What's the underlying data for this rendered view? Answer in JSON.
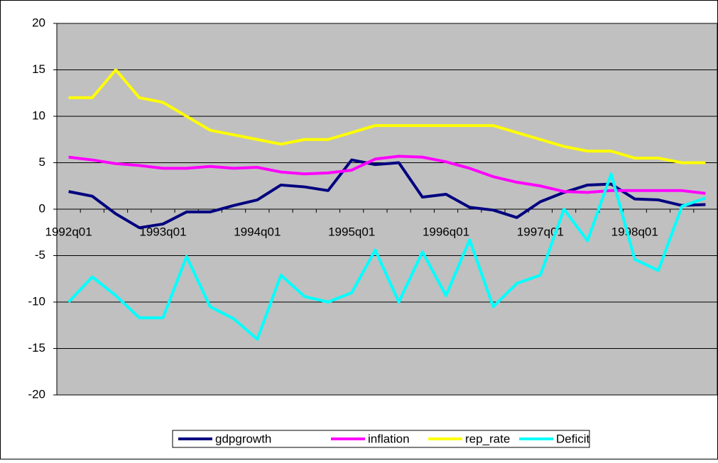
{
  "chart_data": {
    "type": "line",
    "categories": [
      "1992q01",
      null,
      null,
      null,
      "1993q01",
      null,
      null,
      null,
      "1994q01",
      null,
      null,
      null,
      "1995q01",
      null,
      null,
      null,
      "1996q01",
      null,
      null,
      null,
      "1997q01",
      null,
      null,
      null,
      "1998q01",
      null,
      null,
      null
    ],
    "series": [
      {
        "name": "gdpgrowth",
        "color": "#000080",
        "values": [
          1.9,
          1.4,
          -0.5,
          -2,
          -1.6,
          -0.3,
          -0.3,
          0.4,
          1.0,
          2.6,
          2.4,
          2.0,
          5.3,
          4.8,
          5.0,
          1.3,
          1.6,
          0.2,
          -0.1,
          -0.9,
          0.8,
          1.8,
          2.6,
          2.7,
          1.1,
          1.0,
          0.4,
          0.5
        ]
      },
      {
        "name": "inflation",
        "color": "#ff00ff",
        "values": [
          5.6,
          5.3,
          4.9,
          4.7,
          4.4,
          4.4,
          4.6,
          4.4,
          4.5,
          4.0,
          3.8,
          3.9,
          4.2,
          5.4,
          5.7,
          5.6,
          5.1,
          4.4,
          3.5,
          2.9,
          2.5,
          1.9,
          1.8,
          2.0,
          2.0,
          2.0,
          2.0,
          1.7
        ]
      },
      {
        "name": "rep_rate",
        "color": "#ffff00",
        "values": [
          12,
          12,
          15,
          12,
          11.5,
          10,
          8.5,
          8,
          7.5,
          7,
          7.5,
          7.5,
          8.25,
          9,
          9,
          9,
          9,
          9,
          9,
          8.25,
          7.5,
          6.75,
          6.25,
          6.25,
          5.5,
          5.5,
          5,
          5
        ]
      },
      {
        "name": "Deficit",
        "color": "#00ffff",
        "values": [
          -10,
          -7.3,
          -9.3,
          -11.7,
          -11.7,
          -5.1,
          -10.5,
          -11.8,
          -14,
          -7.1,
          -9.4,
          -10,
          -9,
          -4.4,
          -10,
          -4.6,
          -9.3,
          -3.3,
          -10.5,
          -8,
          -7.1,
          0,
          -3.4,
          3.8,
          -5.4,
          -6.6,
          0.3,
          1.2
        ]
      }
    ],
    "ylim": [
      -20,
      20
    ],
    "yticks": [
      -20,
      -15,
      -10,
      -5,
      0,
      5,
      10,
      15,
      20
    ],
    "grid": true,
    "plot_background": "#c0c0c0",
    "legend": "bottom"
  }
}
